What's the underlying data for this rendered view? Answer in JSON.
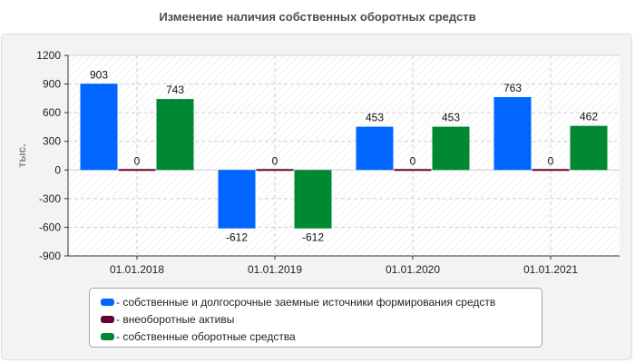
{
  "chart_data": {
    "type": "bar",
    "title": "Изменение наличия собственных оборотных средств",
    "ylabel": "тыс.",
    "xlabel": "",
    "categories": [
      "01.01.2018",
      "01.01.2019",
      "01.01.2020",
      "01.01.2021"
    ],
    "ylim": [
      -900,
      1200
    ],
    "yticks": [
      -900,
      -600,
      -300,
      0,
      300,
      600,
      900,
      1200
    ],
    "grid": true,
    "legend_position": "bottom",
    "series": [
      {
        "name": "- собственные и долгосрочные заемные источники формирования средств",
        "values": [
          903,
          -612,
          453,
          763
        ],
        "color": "#0066ff"
      },
      {
        "name": "- внеоборотные активы",
        "values": [
          0,
          0,
          0,
          0
        ],
        "color": "#660033"
      },
      {
        "name": "- собственные оборотные средства",
        "values": [
          743,
          -612,
          453,
          462
        ],
        "color": "#008833"
      }
    ]
  }
}
